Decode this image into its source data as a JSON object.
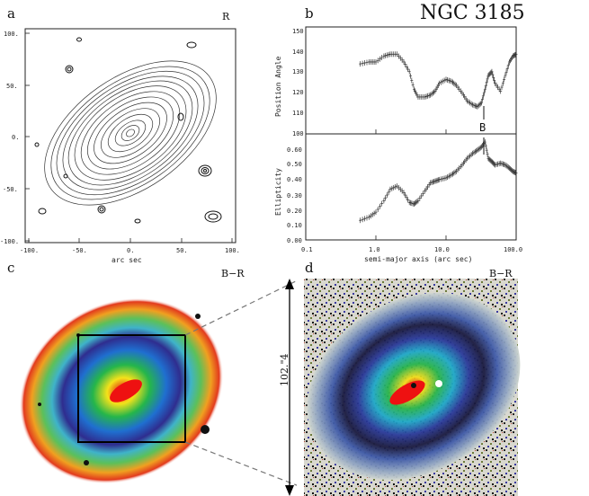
{
  "figure": {
    "title": "NGC 3185",
    "panels": {
      "a": {
        "letter": "a",
        "band": "R",
        "xlabel": "arc sec",
        "xticks": [
          "-100.",
          "-50.",
          "0.",
          "50.",
          "100."
        ],
        "yticks": [
          "100.",
          "50.",
          "0.",
          "-50.",
          "-100."
        ]
      },
      "b": {
        "letter": "b",
        "ylabel_top": "Position Angle",
        "ylabel_bottom": "Ellipticity",
        "xlabel": "semi-major axis (arc sec)",
        "marker": "B",
        "xticks": [
          "0.1",
          "1.0",
          "10.0",
          "100.0"
        ],
        "pa_ticks": [
          "150",
          "140",
          "130",
          "120",
          "110",
          "100"
        ],
        "ell_ticks": [
          "0.60",
          "0.50",
          "0.40",
          "0.30",
          "0.20",
          "0.10",
          "0.00"
        ]
      },
      "c": {
        "letter": "c",
        "band": "B−R"
      },
      "d": {
        "letter": "d",
        "band": "B−R",
        "scale_label": "102.\"4"
      }
    }
  },
  "chart_data": [
    {
      "type": "scatter",
      "title": "",
      "xlabel": "semi-major axis (arc sec)",
      "ylabel": "Position Angle",
      "xscale": "log",
      "xlim": [
        0.1,
        100
      ],
      "ylim": [
        100,
        155
      ],
      "series": [
        {
          "x": [
            0.6,
            0.8,
            1.0,
            1.3,
            1.6,
            2.0,
            2.5,
            3.0,
            3.5,
            4.0,
            5.0,
            6.0,
            7.0,
            8.0,
            10.0,
            12.0,
            14.0,
            17.0,
            20.0,
            24.0,
            28.0,
            32.0,
            36.0,
            40.0,
            45.0,
            50.0,
            60.0,
            70.0,
            80.0,
            90.0,
            100.0
          ],
          "y": [
            136,
            137,
            137,
            140,
            141,
            141,
            137,
            132,
            123,
            119,
            119,
            120,
            122,
            126,
            128,
            127,
            125,
            121,
            117,
            115,
            114,
            116,
            123,
            130,
            132,
            126,
            122,
            130,
            137,
            140,
            141
          ]
        }
      ]
    },
    {
      "type": "scatter",
      "title": "",
      "xlabel": "semi-major axis (arc sec)",
      "ylabel": "Ellipticity",
      "xscale": "log",
      "xlim": [
        0.1,
        100
      ],
      "ylim": [
        0,
        0.65
      ],
      "series": [
        {
          "x": [
            0.6,
            0.8,
            1.0,
            1.3,
            1.6,
            2.0,
            2.5,
            3.0,
            3.5,
            4.0,
            5.0,
            6.0,
            7.0,
            8.0,
            10.0,
            12.0,
            14.0,
            17.0,
            20.0,
            24.0,
            28.0,
            32.0,
            36.0,
            40.0,
            45.0,
            50.0,
            60.0,
            70.0,
            80.0,
            90.0,
            100.0
          ],
          "y": [
            0.12,
            0.14,
            0.17,
            0.24,
            0.31,
            0.33,
            0.29,
            0.23,
            0.22,
            0.24,
            0.3,
            0.35,
            0.36,
            0.37,
            0.38,
            0.4,
            0.42,
            0.46,
            0.5,
            0.53,
            0.55,
            0.57,
            0.6,
            0.5,
            0.48,
            0.46,
            0.47,
            0.46,
            0.44,
            0.42,
            0.41
          ]
        }
      ]
    }
  ]
}
